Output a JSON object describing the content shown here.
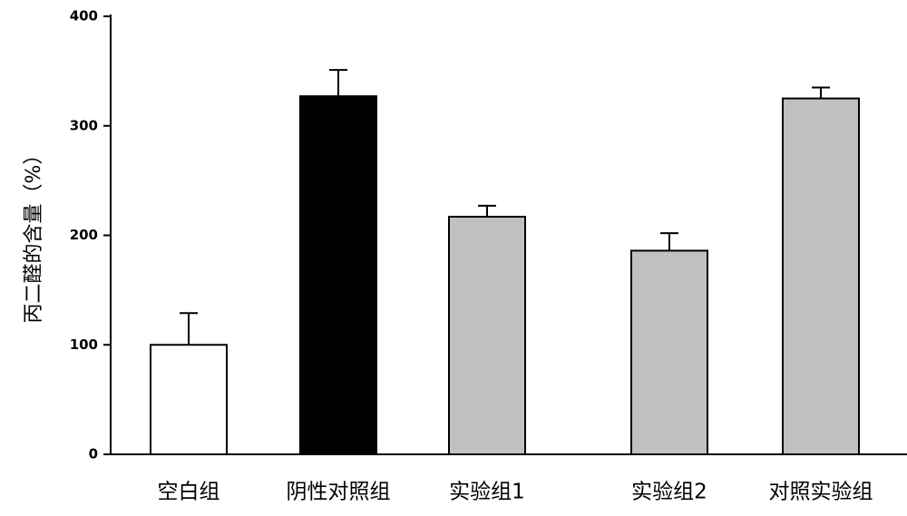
{
  "chart_data": {
    "type": "bar",
    "y_label": "丙二醛的含量（%）",
    "categories": [
      "空白组",
      "阴性对照组",
      "实验组1",
      "实验组2",
      "对照实验组"
    ],
    "values": [
      100,
      327,
      217,
      186,
      325
    ],
    "errors": [
      29,
      24,
      10,
      16,
      10
    ],
    "colors": [
      "#ffffff",
      "#000000",
      "#c0c0c0",
      "#c0c0c0",
      "#c0c0c0"
    ],
    "ylim": [
      0,
      400
    ],
    "yticks": [
      0,
      100,
      200,
      300,
      400
    ],
    "grid": false
  }
}
